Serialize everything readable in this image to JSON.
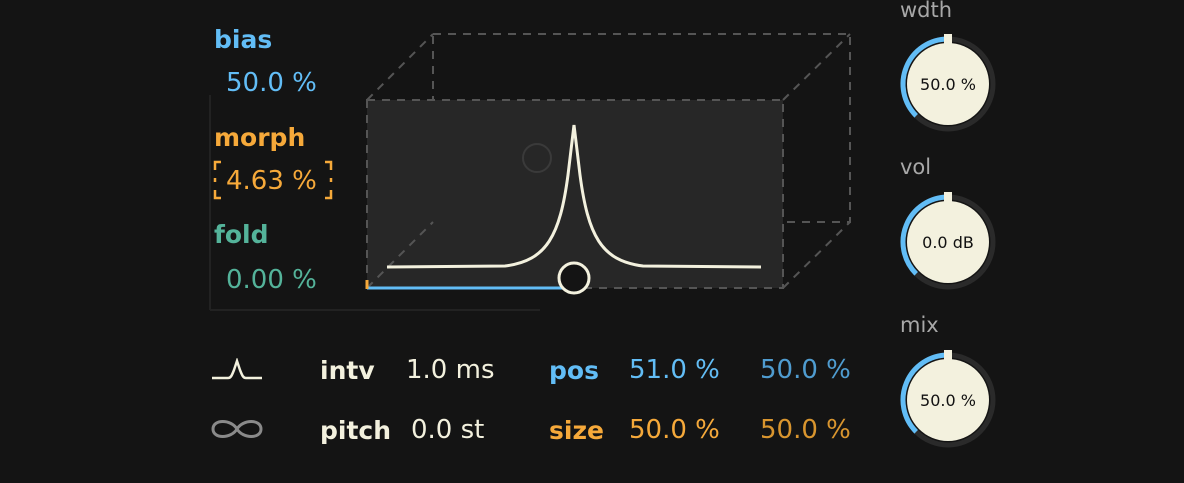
{
  "left_params": {
    "bias": {
      "label": "bias",
      "value": "50.0 %"
    },
    "morph": {
      "label": "morph",
      "value": "4.63 %"
    },
    "fold": {
      "label": "fold",
      "value": "0.00 %"
    }
  },
  "bottom": {
    "shape_icon": "window-shape-icon",
    "loop_icon": "infinity-icon",
    "intv": {
      "label": "intv",
      "value": "1.0 ms"
    },
    "pitch": {
      "label": "pitch",
      "value": "0.0 st"
    },
    "pos": {
      "label": "pos",
      "value1": "51.0 %",
      "value2": "50.0 %"
    },
    "size": {
      "label": "size",
      "value1": "50.0 %",
      "value2": "50.0 %"
    }
  },
  "knobs": [
    {
      "label": "wdth",
      "value": "50.0 %",
      "level": 0.5
    },
    {
      "label": "vol",
      "value": "0.0 dB",
      "level": 0.5
    },
    {
      "label": "mix",
      "value": "50.0 %",
      "level": 0.5
    }
  ],
  "colors": {
    "blue": "#62bdf6",
    "orange": "#f6a93a",
    "teal": "#54b39a",
    "cream": "#f3f1de",
    "background": "#141414"
  }
}
